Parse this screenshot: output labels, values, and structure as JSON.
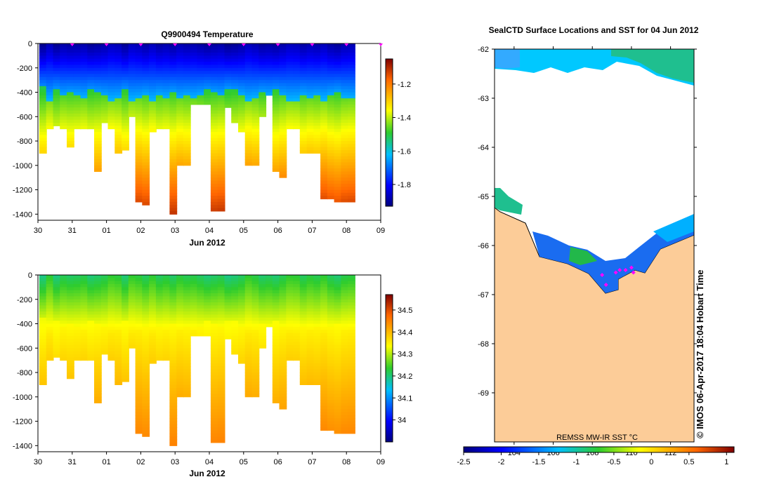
{
  "temperature_panel": {
    "title": "Q9900494  Temperature",
    "xlabel": "Jun 2012",
    "x_ticks": [
      "30",
      "31",
      "01",
      "02",
      "03",
      "04",
      "05",
      "06",
      "07",
      "08",
      "09"
    ],
    "y_ticks": [
      "0",
      "-200",
      "-400",
      "-600",
      "-800",
      "-1000",
      "-1200",
      "-1400"
    ],
    "colorbar_ticks": [
      "-1.2",
      "-1.4",
      "-1.6",
      "-1.8"
    ]
  },
  "salinity_panel": {
    "xlabel": "Jun 2012",
    "x_ticks": [
      "30",
      "31",
      "01",
      "02",
      "03",
      "04",
      "05",
      "06",
      "07",
      "08",
      "09"
    ],
    "y_ticks": [
      "0",
      "-200",
      "-400",
      "-600",
      "-800",
      "-1000",
      "-1200",
      "-1400"
    ],
    "colorbar_ticks": [
      "34.5",
      "34.4",
      "34.3",
      "34.2",
      "34.1",
      "34"
    ]
  },
  "map_panel": {
    "title": "SealCTD Surface Locations and SST for 04 Jun 2012",
    "y_ticks": [
      "-62",
      "-63",
      "-64",
      "-65",
      "-66",
      "-67",
      "-68",
      "-69"
    ],
    "x_ticks": [
      "104",
      "106",
      "108",
      "110",
      "112"
    ],
    "credit": "© IMOS 06-Apr-2017 18:04 Hobart Time",
    "sst_label": "REMSS MW-IR SST °C",
    "sst_ticks": [
      "-2.5",
      "-2",
      "-1.5",
      "-1",
      "-0.5",
      "0",
      "0.5",
      "1"
    ]
  },
  "colors": {
    "land": "#fccc98",
    "marker": "#ff00ff"
  },
  "chart_data": [
    {
      "type": "heatmap",
      "title": "Q9900494  Temperature",
      "xlabel": "Jun 2012",
      "ylabel": "",
      "xlim": [
        30,
        40
      ],
      "ylim": [
        -1450,
        0
      ],
      "colorbar_range": [
        -1.93,
        -1.05
      ],
      "profile_x": [
        30.05,
        30.25,
        30.45,
        30.65,
        30.85,
        31.05,
        31.25,
        31.45,
        31.65,
        31.85,
        32.05,
        32.25,
        32.45,
        32.65,
        32.85,
        33.05,
        33.25,
        33.45,
        33.65,
        33.85,
        34.05,
        34.25,
        34.45,
        34.65,
        34.85,
        35.05,
        35.25,
        35.45,
        35.65,
        35.85,
        36.05,
        36.25,
        36.45,
        36.65,
        36.85,
        37.05,
        37.25,
        37.45,
        37.65,
        37.85,
        38.05,
        38.25,
        38.45,
        38.65,
        38.85,
        39.05
      ],
      "profile_max_depth": [
        -900,
        -700,
        -660,
        -700,
        -850,
        -700,
        -700,
        -700,
        -1030,
        -650,
        -700,
        -880,
        -870,
        -600,
        -1300,
        -1310,
        -720,
        -700,
        -700,
        -1400,
        -1000,
        -1000,
        -480,
        -480,
        -480,
        -1360,
        -1360,
        -520,
        -650,
        -720,
        -1000,
        -980,
        -600,
        -420,
        -1050,
        -1090,
        -700,
        -680,
        -880,
        -880,
        -880,
        -1260,
        -1260,
        -1300,
        -1280,
        -1300
      ]
    },
    {
      "type": "heatmap",
      "title": "",
      "xlabel": "Jun 2012",
      "ylabel": "",
      "xlim": [
        30,
        40
      ],
      "ylim": [
        -1450,
        0
      ],
      "colorbar_range": [
        33.9,
        34.57
      ]
    },
    {
      "type": "scatter",
      "title": "SealCTD Surface Locations and SST for 04 Jun 2012",
      "xlabel": "",
      "ylabel": "",
      "xlim": [
        103,
        113.2
      ],
      "ylim": [
        -70,
        -62
      ],
      "colorbar_label": "REMSS MW-IR SST °C",
      "colorbar_range": [
        -2.5,
        1.1
      ],
      "points": [
        [
          108.5,
          -66.6
        ],
        [
          108.7,
          -66.8
        ],
        [
          109.2,
          -66.55
        ],
        [
          109.4,
          -66.5
        ],
        [
          109.7,
          -66.5
        ],
        [
          110.0,
          -66.45
        ],
        [
          110.1,
          -66.55
        ]
      ]
    }
  ]
}
